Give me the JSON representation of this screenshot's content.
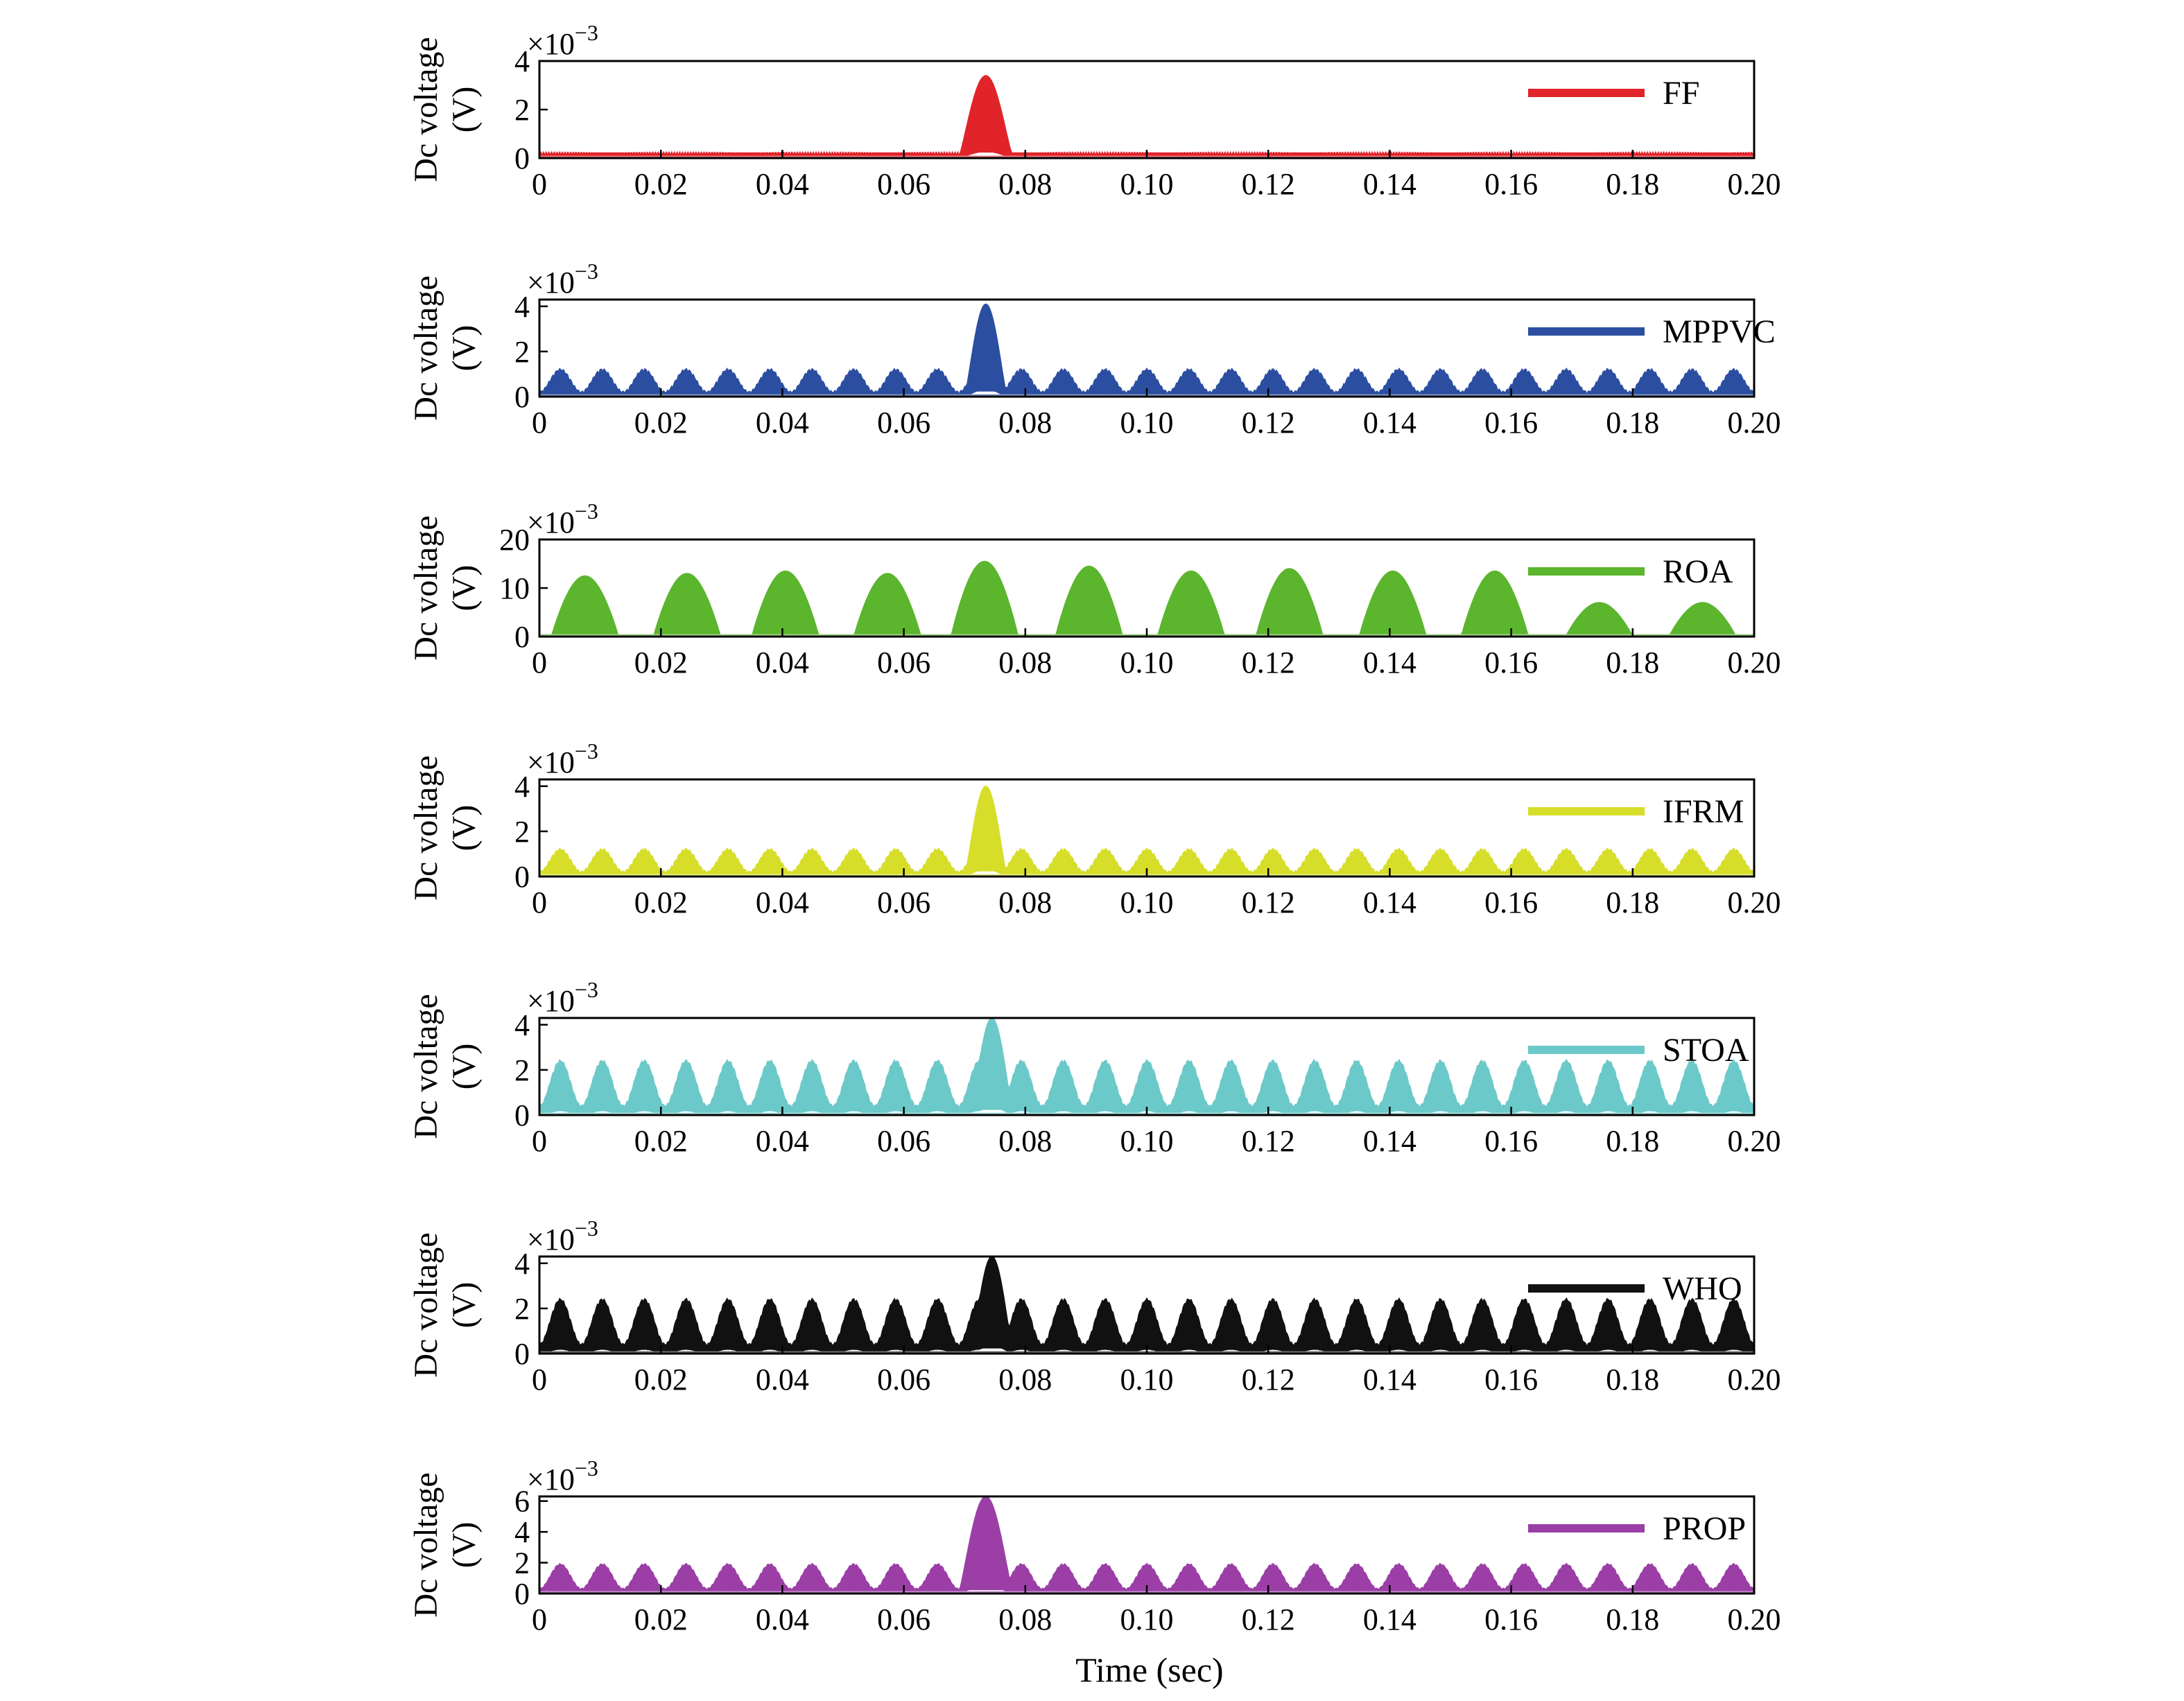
{
  "figure": {
    "xlabel": "Time (sec)",
    "ylabel_line1": "Dc voltage",
    "ylabel_line2": "(V)",
    "exponent_label": "×10",
    "exponent_power": "−3"
  },
  "chart_data": [
    {
      "type": "area",
      "series": [
        {
          "name": "FF",
          "color": "#e0242a"
        }
      ],
      "x_ticks": [
        "0",
        "0.02",
        "0.04",
        "0.06",
        "0.08",
        "0.10",
        "0.12",
        "0.14",
        "0.16",
        "0.18",
        "0.20"
      ],
      "y_ticks": [
        "0",
        "2",
        "4"
      ],
      "xlim": [
        0,
        0.2
      ],
      "ylim": [
        0,
        4
      ],
      "y_scale_exponent": -3,
      "ripple_amplitude": 0.25,
      "peaks": [
        {
          "x": 0.0735,
          "y": 3.4,
          "half_width": 0.0045
        }
      ],
      "legend_position": "top-right"
    },
    {
      "type": "area",
      "series": [
        {
          "name": "MPPVC",
          "color": "#2b4ea1"
        }
      ],
      "x_ticks": [
        "0",
        "0.02",
        "0.04",
        "0.06",
        "0.08",
        "0.10",
        "0.12",
        "0.14",
        "0.16",
        "0.18",
        "0.20"
      ],
      "y_ticks": [
        "0",
        "2",
        "4"
      ],
      "xlim": [
        0,
        0.2
      ],
      "ylim": [
        0,
        4.3
      ],
      "y_scale_exponent": -3,
      "bump_period": 0.0069,
      "bump_height": 1.0,
      "baseline": 0.1,
      "peaks": [
        {
          "x": 0.0735,
          "y": 4.1,
          "half_width": 0.0035
        }
      ],
      "legend_position": "top-right"
    },
    {
      "type": "area",
      "series": [
        {
          "name": "ROA",
          "color": "#5bb52d"
        }
      ],
      "x_ticks": [
        "0",
        "0.02",
        "0.04",
        "0.06",
        "0.08",
        "0.10",
        "0.12",
        "0.14",
        "0.16",
        "0.18",
        "0.20"
      ],
      "y_ticks": [
        "0",
        "10",
        "20"
      ],
      "xlim": [
        0,
        0.2
      ],
      "ylim": [
        0,
        20
      ],
      "y_scale_exponent": -3,
      "lobes": [
        {
          "x": 0.0075,
          "y": 12.5
        },
        {
          "x": 0.0243,
          "y": 13.0
        },
        {
          "x": 0.0405,
          "y": 13.5
        },
        {
          "x": 0.0573,
          "y": 13.0
        },
        {
          "x": 0.0733,
          "y": 15.5
        },
        {
          "x": 0.0905,
          "y": 14.5
        },
        {
          "x": 0.1073,
          "y": 13.5
        },
        {
          "x": 0.1235,
          "y": 14.0
        },
        {
          "x": 0.1405,
          "y": 13.5
        },
        {
          "x": 0.1573,
          "y": 13.5
        },
        {
          "x": 0.1745,
          "y": 7.0
        },
        {
          "x": 0.1915,
          "y": 7.0
        }
      ],
      "lobe_half_width": 0.0055,
      "legend_position": "top-right"
    },
    {
      "type": "area",
      "series": [
        {
          "name": "IFRM",
          "color": "#d6de2a"
        }
      ],
      "x_ticks": [
        "0",
        "0.02",
        "0.04",
        "0.06",
        "0.08",
        "0.10",
        "0.12",
        "0.14",
        "0.16",
        "0.18",
        "0.20"
      ],
      "y_ticks": [
        "0",
        "2",
        "4"
      ],
      "xlim": [
        0,
        0.2
      ],
      "ylim": [
        0,
        4.3
      ],
      "y_scale_exponent": -3,
      "bump_period": 0.0069,
      "bump_height": 1.0,
      "baseline": 0.1,
      "peaks": [
        {
          "x": 0.0735,
          "y": 4.0,
          "half_width": 0.0035
        }
      ],
      "legend_position": "top-right"
    },
    {
      "type": "area",
      "series": [
        {
          "name": "STOA",
          "color": "#6cc9c9"
        }
      ],
      "x_ticks": [
        "0",
        "0.02",
        "0.04",
        "0.06",
        "0.08",
        "0.10",
        "0.12",
        "0.14",
        "0.16",
        "0.18",
        "0.20"
      ],
      "y_ticks": [
        "0",
        "2",
        "4"
      ],
      "xlim": [
        0,
        0.2
      ],
      "ylim": [
        0,
        4.3
      ],
      "y_scale_exponent": -3,
      "bump_period": 0.0069,
      "bump_height": 2.0,
      "baseline": 0.3,
      "peaks": [
        {
          "x": 0.0745,
          "y": 4.3,
          "half_width": 0.0035
        }
      ],
      "legend_position": "top-right"
    },
    {
      "type": "area",
      "series": [
        {
          "name": "WHO",
          "color": "#111111"
        }
      ],
      "x_ticks": [
        "0",
        "0.02",
        "0.04",
        "0.06",
        "0.08",
        "0.10",
        "0.12",
        "0.14",
        "0.16",
        "0.18",
        "0.20"
      ],
      "y_ticks": [
        "0",
        "2",
        "4"
      ],
      "xlim": [
        0,
        0.2
      ],
      "ylim": [
        0,
        4.3
      ],
      "y_scale_exponent": -3,
      "bump_period": 0.0069,
      "bump_height": 2.0,
      "baseline": 0.3,
      "peaks": [
        {
          "x": 0.0745,
          "y": 4.3,
          "half_width": 0.0035
        }
      ],
      "legend_position": "top-right"
    },
    {
      "type": "area",
      "series": [
        {
          "name": "PROP",
          "color": "#9b3fa6"
        }
      ],
      "x_ticks": [
        "0",
        "0.02",
        "0.04",
        "0.06",
        "0.08",
        "0.10",
        "0.12",
        "0.14",
        "0.16",
        "0.18",
        "0.20"
      ],
      "y_ticks": [
        "0",
        "2",
        "4",
        "6"
      ],
      "xlim": [
        0,
        0.2
      ],
      "ylim": [
        0,
        6.3
      ],
      "y_scale_exponent": -3,
      "bump_period": 0.0069,
      "bump_height": 1.6,
      "baseline": 0.2,
      "peaks": [
        {
          "x": 0.0735,
          "y": 6.3,
          "half_width": 0.0045
        }
      ],
      "legend_position": "top-right"
    }
  ]
}
